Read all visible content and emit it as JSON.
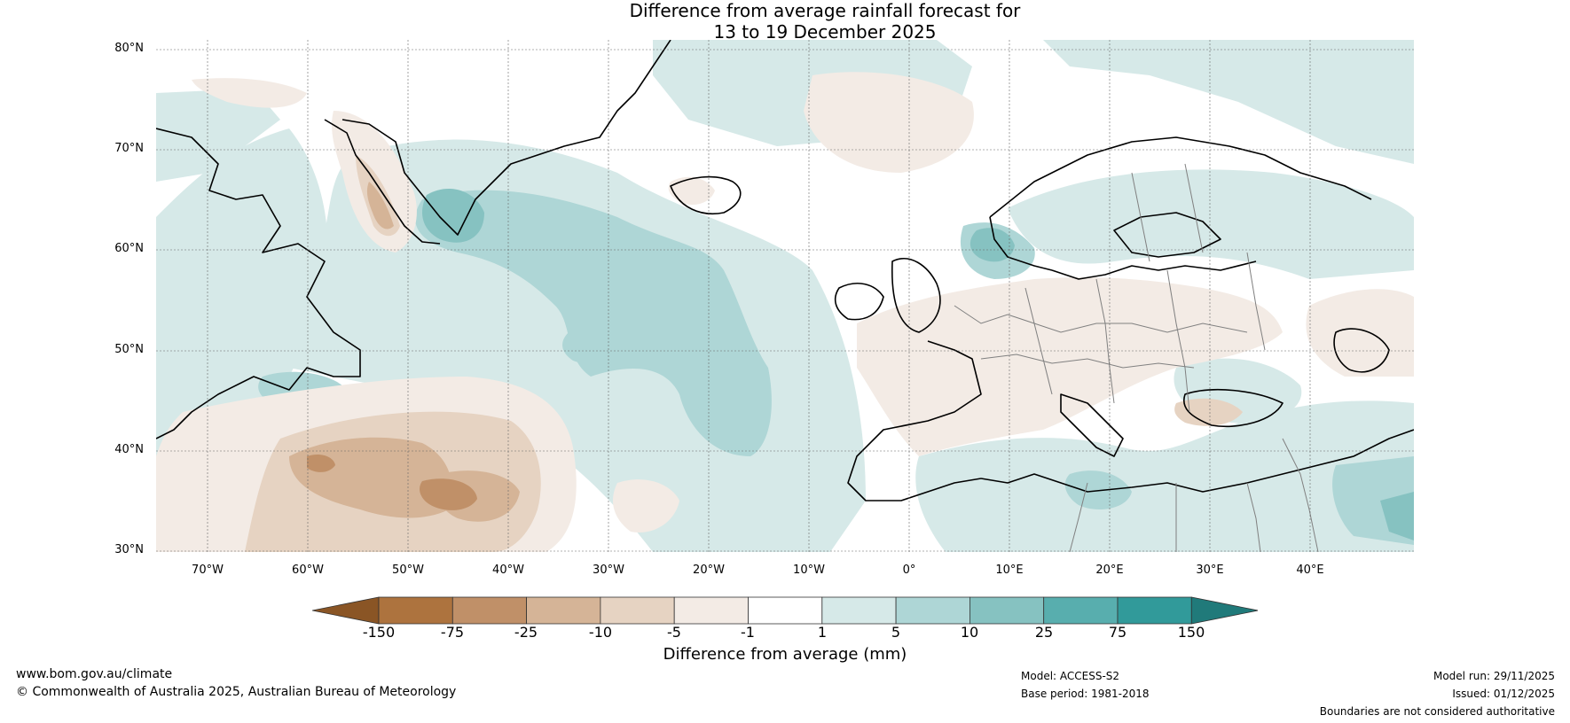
{
  "title": {
    "line1": "Difference from average rainfall forecast for",
    "line2": "13 to 19 December 2025"
  },
  "lat_labels": [
    "80°N",
    "70°N",
    "60°N",
    "50°N",
    "40°N",
    "30°N"
  ],
  "lon_labels": [
    "70°W",
    "60°W",
    "50°W",
    "40°W",
    "30°W",
    "20°W",
    "10°W",
    "0°",
    "10°E",
    "20°E",
    "30°E",
    "40°E"
  ],
  "legend": {
    "label": "Difference from average (mm)",
    "ticks": [
      "-150",
      "-75",
      "-25",
      "-10",
      "-5",
      "-1",
      "1",
      "5",
      "10",
      "25",
      "75",
      "150"
    ],
    "colors": [
      "#8a5525",
      "#ad733e",
      "#c09068",
      "#d5b497",
      "#e6d3c2",
      "#f3ebe5",
      "#ffffff",
      "#d6e9e8",
      "#aed6d6",
      "#86c2c1",
      "#58aeae",
      "#319a9a",
      "#207a7a"
    ]
  },
  "footer": {
    "website": "www.bom.gov.au/climate",
    "copyright": "© Commonwealth of Australia 2025, Australian Bureau of Meteorology",
    "model": "Model: ACCESS-S2",
    "base_period": "Base period: 1981-2018",
    "model_run": "Model run: 29/11/2025",
    "issued": "Issued: 01/12/2025",
    "disclaimer": "Boundaries are not considered authoritative"
  }
}
